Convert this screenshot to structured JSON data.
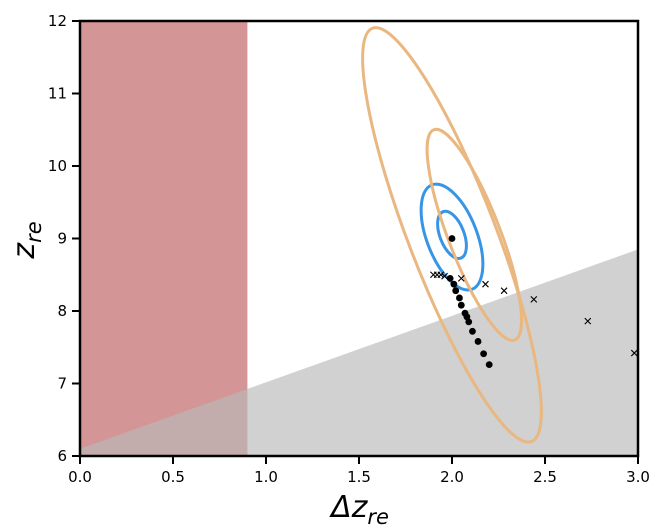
{
  "chart_data": {
    "type": "scatter",
    "xlabel_main": "Δz",
    "xlabel_sub": "re",
    "ylabel_main": "z",
    "ylabel_sub": "re",
    "xlim": [
      0.0,
      3.0
    ],
    "ylim": [
      6,
      12
    ],
    "xticks": [
      "0.0",
      "0.5",
      "1.0",
      "1.5",
      "2.0",
      "2.5",
      "3.0"
    ],
    "yticks": [
      "6",
      "7",
      "8",
      "9",
      "10",
      "11",
      "12"
    ],
    "xtick_values": [
      0.0,
      0.5,
      1.0,
      1.5,
      2.0,
      2.5,
      3.0
    ],
    "ytick_values": [
      6,
      7,
      8,
      9,
      10,
      11,
      12
    ],
    "excluded_x_region": {
      "x0": 0.0,
      "x1": 0.9,
      "color": "#c0686a"
    },
    "excluded_lower_region": {
      "line_start": [
        0.0,
        6.1
      ],
      "line_end": [
        3.0,
        8.85
      ],
      "color": "#b8b8b8"
    },
    "contours": [
      {
        "color": "#3795e6",
        "center": [
          2.0,
          9.05
        ],
        "semi_major": 0.32,
        "semi_minor": 0.065,
        "level": "inner"
      },
      {
        "color": "#3795e6",
        "center": [
          2.0,
          9.02
        ],
        "semi_major": 0.72,
        "semi_minor": 0.135,
        "level": "outer"
      },
      {
        "color": "#e9b77f",
        "center": [
          2.12,
          9.05
        ],
        "semi_major": 1.45,
        "semi_minor": 0.14,
        "level": "inner"
      },
      {
        "color": "#e9b77f",
        "center": [
          2.0,
          9.05
        ],
        "semi_major": 2.85,
        "semi_minor": 0.235,
        "level": "outer"
      }
    ],
    "series": [
      {
        "marker": "dot",
        "color": "#000000",
        "points": [
          [
            2.0,
            9.0
          ],
          [
            1.99,
            8.45
          ],
          [
            2.01,
            8.37
          ],
          [
            2.02,
            8.28
          ],
          [
            2.04,
            8.18
          ],
          [
            2.05,
            8.08
          ],
          [
            2.07,
            7.97
          ],
          [
            2.08,
            7.92
          ],
          [
            2.09,
            7.85
          ],
          [
            2.11,
            7.72
          ],
          [
            2.14,
            7.58
          ],
          [
            2.17,
            7.41
          ],
          [
            2.2,
            7.26
          ]
        ]
      },
      {
        "marker": "x",
        "color": "#000000",
        "points": [
          [
            1.9,
            8.5
          ],
          [
            1.92,
            8.5
          ],
          [
            1.94,
            8.5
          ],
          [
            1.96,
            8.48
          ],
          [
            2.05,
            8.45
          ],
          [
            2.18,
            8.37
          ],
          [
            2.28,
            8.28
          ],
          [
            2.44,
            8.16
          ],
          [
            2.73,
            7.86
          ],
          [
            2.98,
            7.42
          ]
        ]
      }
    ]
  }
}
